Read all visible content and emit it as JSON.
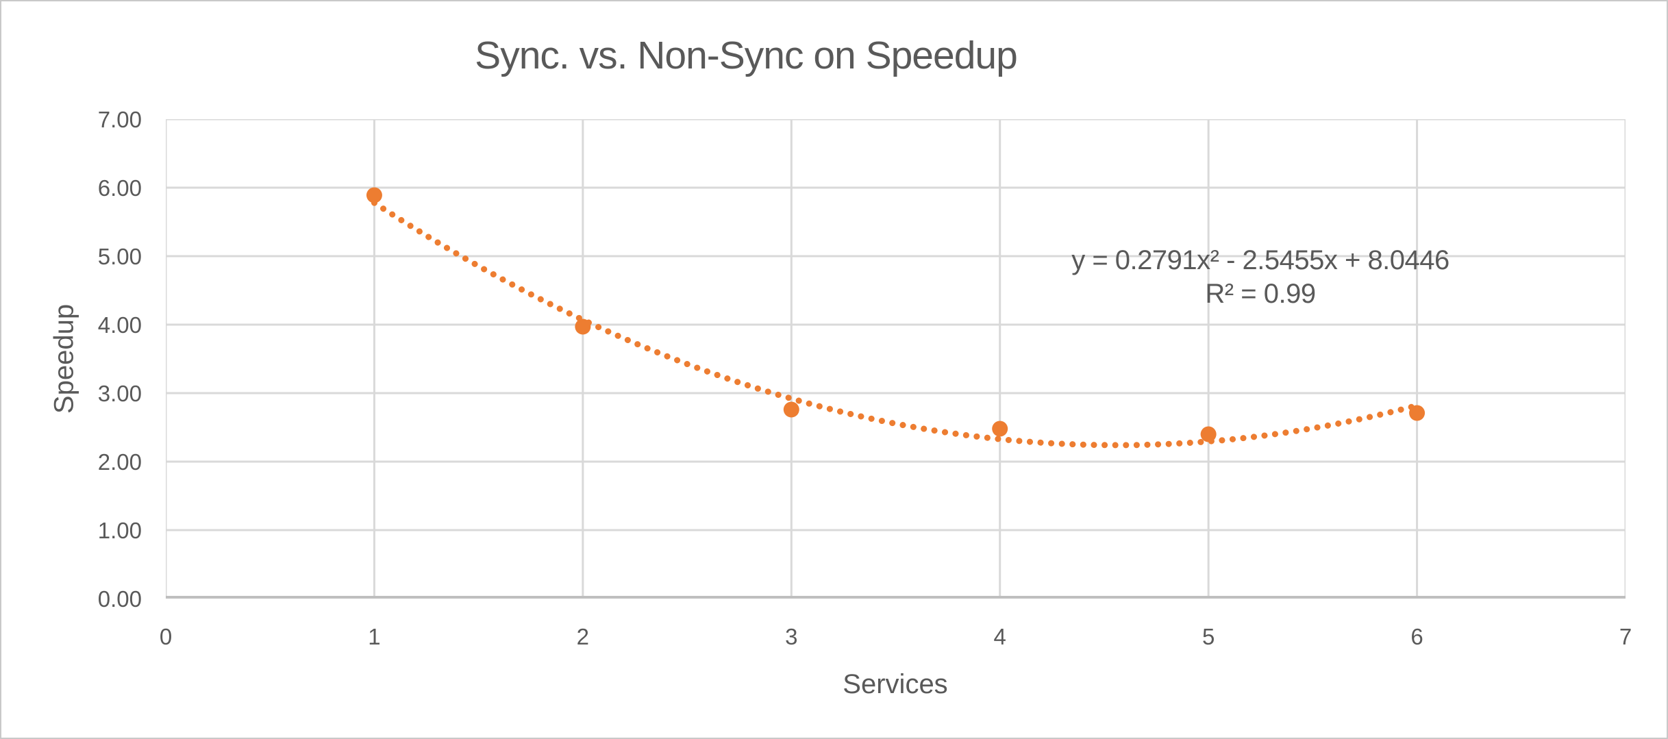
{
  "chart_data": {
    "type": "scatter",
    "title": "Sync. vs. Non-Sync on Speedup",
    "xlabel": "Services",
    "ylabel": "Speedup",
    "xlim": [
      0,
      7
    ],
    "ylim": [
      0,
      7
    ],
    "grid": true,
    "legend": "none",
    "x_ticks": [
      "0",
      "1",
      "2",
      "3",
      "4",
      "5",
      "6",
      "7"
    ],
    "y_ticks": [
      "0.00",
      "1.00",
      "2.00",
      "3.00",
      "4.00",
      "5.00",
      "6.00",
      "7.00"
    ],
    "series": [
      {
        "name": "Speedup",
        "x": [
          1,
          2,
          3,
          4,
          5,
          6
        ],
        "y": [
          5.89,
          3.97,
          2.76,
          2.48,
          2.4,
          2.71
        ],
        "marker": "circle"
      }
    ],
    "trendline": {
      "kind": "polynomial",
      "order": 2,
      "a": 0.2791,
      "b": -2.5455,
      "c": 8.0446,
      "x_range": [
        1,
        6
      ],
      "style": "dotted"
    },
    "annotation": {
      "equation": "y = 0.2791x² - 2.5455x + 8.0446",
      "r_squared": "R² = 0.99"
    },
    "colors": {
      "series": "#ED7D31",
      "gridline": "#D9D9D9",
      "axis_line": "#BFBFBF",
      "text": "#595959"
    }
  }
}
